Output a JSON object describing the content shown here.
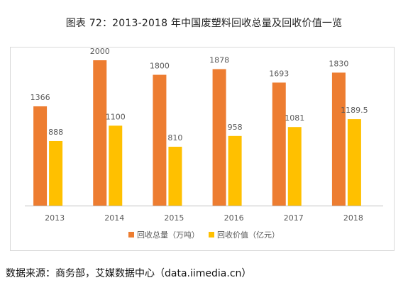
{
  "title": "图表 72：2013-2018 年中国废塑料回收总量及回收价值一览",
  "source": "数据来源：商务部，艾媒数据中心（data.iimedia.cn）",
  "colors": {
    "series1": "#ED7D31",
    "series2": "#FFC000",
    "axis": "#bfbfbf",
    "text": "#595959"
  },
  "chart_data": {
    "type": "bar",
    "categories": [
      "2013",
      "2014",
      "2015",
      "2016",
      "2017",
      "2018"
    ],
    "series": [
      {
        "name": "回收总量（万吨）",
        "values": [
          1366,
          2000,
          1800,
          1878,
          1693,
          1830
        ],
        "labels": [
          "1366",
          "2000",
          "1800",
          "1878",
          "1693",
          "1830"
        ]
      },
      {
        "name": "回收价值（亿元）",
        "values": [
          888,
          1100,
          810,
          958,
          1081,
          1189.5
        ],
        "labels": [
          "888",
          "1100",
          "810",
          "958",
          "1081",
          "1189.5"
        ]
      }
    ],
    "ylim": [
      0,
      2200
    ],
    "grid": false,
    "legend": "bottom"
  }
}
